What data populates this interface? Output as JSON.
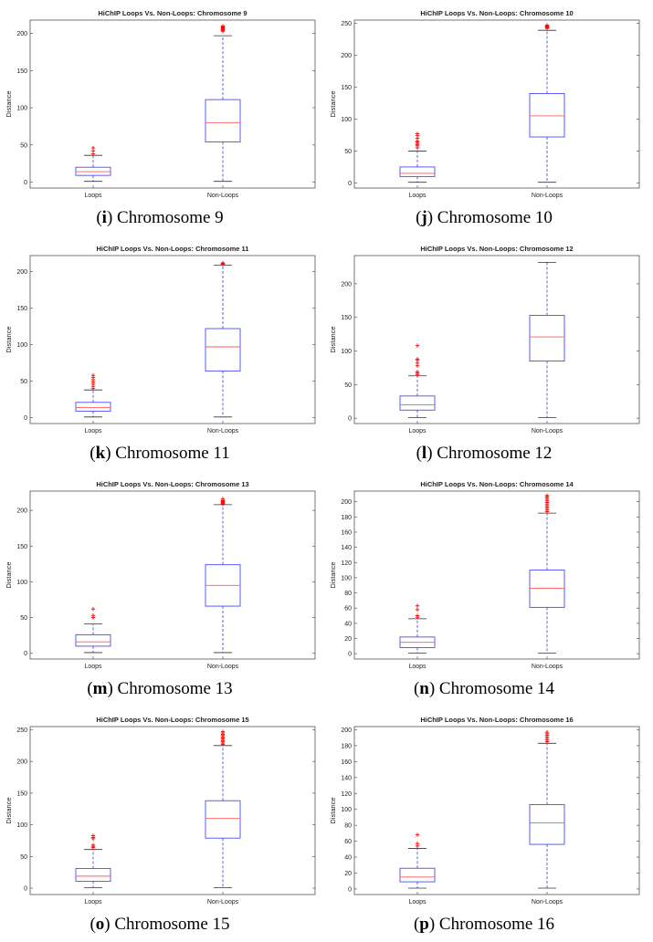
{
  "figure": {
    "panels": [
      {
        "letter": "i",
        "caption_text": "Chromosome 9"
      },
      {
        "letter": "j",
        "caption_text": "Chromosome 10"
      },
      {
        "letter": "k",
        "caption_text": "Chromosome 11"
      },
      {
        "letter": "l",
        "caption_text": "Chromosome 12"
      },
      {
        "letter": "m",
        "caption_text": "Chromosome 13"
      },
      {
        "letter": "n",
        "caption_text": "Chromosome 14"
      },
      {
        "letter": "o",
        "caption_text": "Chromosome 15"
      },
      {
        "letter": "p",
        "caption_text": "Chromosome 16"
      }
    ]
  },
  "colors": {
    "box": "#4a4aff",
    "median": "#ff5a5a",
    "outlier": "#ff0000",
    "whisker": "#3a3ad0",
    "axis": "#555555",
    "text": "#222222"
  },
  "chart_data": [
    {
      "type": "box",
      "title": "HiChIP Loops Vs. Non-Loops: Chromosome 9",
      "ylabel": "Distance",
      "categories": [
        "Loops",
        "Non-Loops"
      ],
      "ylim": [
        -8,
        218
      ],
      "yticks": [
        0,
        50,
        100,
        150,
        200
      ],
      "boxes": [
        {
          "min": 1,
          "q1": 9,
          "median": 14,
          "q3": 20,
          "max": 36,
          "outliers": [
            38,
            42,
            46
          ]
        },
        {
          "min": 1,
          "q1": 54,
          "median": 80,
          "q3": 111,
          "max": 197,
          "outliers": [
            203,
            204,
            205,
            206,
            207,
            208,
            209,
            210
          ]
        }
      ]
    },
    {
      "type": "box",
      "title": "HiChIP Loops Vs. Non-Loops: Chromosome 10",
      "ylabel": "Distance",
      "categories": [
        "Loops",
        "Non-Loops"
      ],
      "ylim": [
        -8,
        255
      ],
      "yticks": [
        0,
        50,
        100,
        150,
        200,
        250
      ],
      "boxes": [
        {
          "min": 1,
          "q1": 10,
          "median": 15,
          "q3": 25,
          "max": 50,
          "outliers": [
            55,
            58,
            60,
            62,
            64,
            66,
            70,
            74,
            77
          ]
        },
        {
          "min": 1,
          "q1": 72,
          "median": 105,
          "q3": 140,
          "max": 239,
          "outliers": [
            242,
            243,
            244,
            245,
            246,
            247
          ]
        }
      ]
    },
    {
      "type": "box",
      "title": "HiChIP Loops Vs. Non-Loops: Chromosome 11",
      "ylabel": "Distance",
      "categories": [
        "Loops",
        "Non-Loops"
      ],
      "ylim": [
        -8,
        222
      ],
      "yticks": [
        0,
        50,
        100,
        150,
        200
      ],
      "boxes": [
        {
          "min": 1,
          "q1": 9,
          "median": 14,
          "q3": 21,
          "max": 38,
          "outliers": [
            40,
            43,
            46,
            49,
            52,
            55,
            58
          ]
        },
        {
          "min": 1,
          "q1": 64,
          "median": 97,
          "q3": 122,
          "max": 209,
          "outliers": [
            210,
            211,
            212
          ]
        }
      ]
    },
    {
      "type": "box",
      "title": "HiChIP Loops Vs. Non-Loops: Chromosome 12",
      "ylabel": "Distance",
      "categories": [
        "Loops",
        "Non-Loops"
      ],
      "ylim": [
        -8,
        242
      ],
      "yticks": [
        0,
        50,
        100,
        150,
        200
      ],
      "boxes": [
        {
          "min": 1,
          "q1": 12,
          "median": 20,
          "q3": 33,
          "max": 63,
          "outliers": [
            65,
            67,
            69,
            78,
            82,
            86,
            88,
            108
          ]
        },
        {
          "min": 1,
          "q1": 85,
          "median": 121,
          "q3": 153,
          "max": 232,
          "outliers": []
        }
      ]
    },
    {
      "type": "box",
      "title": "HiChIP Loops Vs. Non-Loops: Chromosome 13",
      "ylabel": "Distance",
      "categories": [
        "Loops",
        "Non-Loops"
      ],
      "ylim": [
        -8,
        227
      ],
      "yticks": [
        0,
        50,
        100,
        150,
        200
      ],
      "boxes": [
        {
          "min": 1,
          "q1": 10,
          "median": 16,
          "q3": 26,
          "max": 41,
          "outliers": [
            50,
            53,
            62
          ]
        },
        {
          "min": 1,
          "q1": 66,
          "median": 95,
          "q3": 124,
          "max": 208,
          "outliers": [
            209,
            210,
            211,
            212,
            213,
            214,
            216
          ]
        }
      ]
    },
    {
      "type": "box",
      "title": "HiChIP Loops Vs. Non-Loops: Chromosome 14",
      "ylabel": "Distance",
      "categories": [
        "Loops",
        "Non-Loops"
      ],
      "ylim": [
        -7,
        214
      ],
      "yticks": [
        0,
        20,
        40,
        60,
        80,
        100,
        120,
        140,
        160,
        180,
        200
      ],
      "boxes": [
        {
          "min": 1,
          "q1": 8,
          "median": 15,
          "q3": 22,
          "max": 46,
          "outliers": [
            48,
            50,
            58,
            63
          ]
        },
        {
          "min": 1,
          "q1": 61,
          "median": 86,
          "q3": 110,
          "max": 185,
          "outliers": [
            187,
            189,
            191,
            193,
            195,
            197,
            199,
            201,
            203,
            205,
            207,
            208
          ]
        }
      ]
    },
    {
      "type": "box",
      "title": "HiChIP Loops Vs. Non-Loops: Chromosome 15",
      "ylabel": "Distance",
      "categories": [
        "Loops",
        "Non-Loops"
      ],
      "ylim": [
        -10,
        255
      ],
      "yticks": [
        0,
        50,
        100,
        150,
        200,
        250
      ],
      "boxes": [
        {
          "min": 1,
          "q1": 11,
          "median": 19,
          "q3": 31,
          "max": 61,
          "outliers": [
            64,
            66,
            68,
            78,
            80,
            83
          ]
        },
        {
          "min": 1,
          "q1": 79,
          "median": 110,
          "q3": 138,
          "max": 225,
          "outliers": [
            227,
            229,
            231,
            233,
            235,
            237,
            239,
            241,
            243,
            245,
            247
          ]
        }
      ]
    },
    {
      "type": "box",
      "title": "HiChIP Loops Vs. Non-Loops: Chromosome 16",
      "ylabel": "Distance",
      "categories": [
        "Loops",
        "Non-Loops"
      ],
      "ylim": [
        -7,
        204
      ],
      "yticks": [
        0,
        20,
        40,
        60,
        80,
        100,
        120,
        140,
        160,
        180,
        200
      ],
      "boxes": [
        {
          "min": 1,
          "q1": 9,
          "median": 15,
          "q3": 26,
          "max": 51,
          "outliers": [
            54,
            57,
            68
          ]
        },
        {
          "min": 1,
          "q1": 56,
          "median": 83,
          "q3": 106,
          "max": 183,
          "outliers": [
            185,
            187,
            189,
            191,
            193,
            195,
            197
          ]
        }
      ]
    }
  ]
}
